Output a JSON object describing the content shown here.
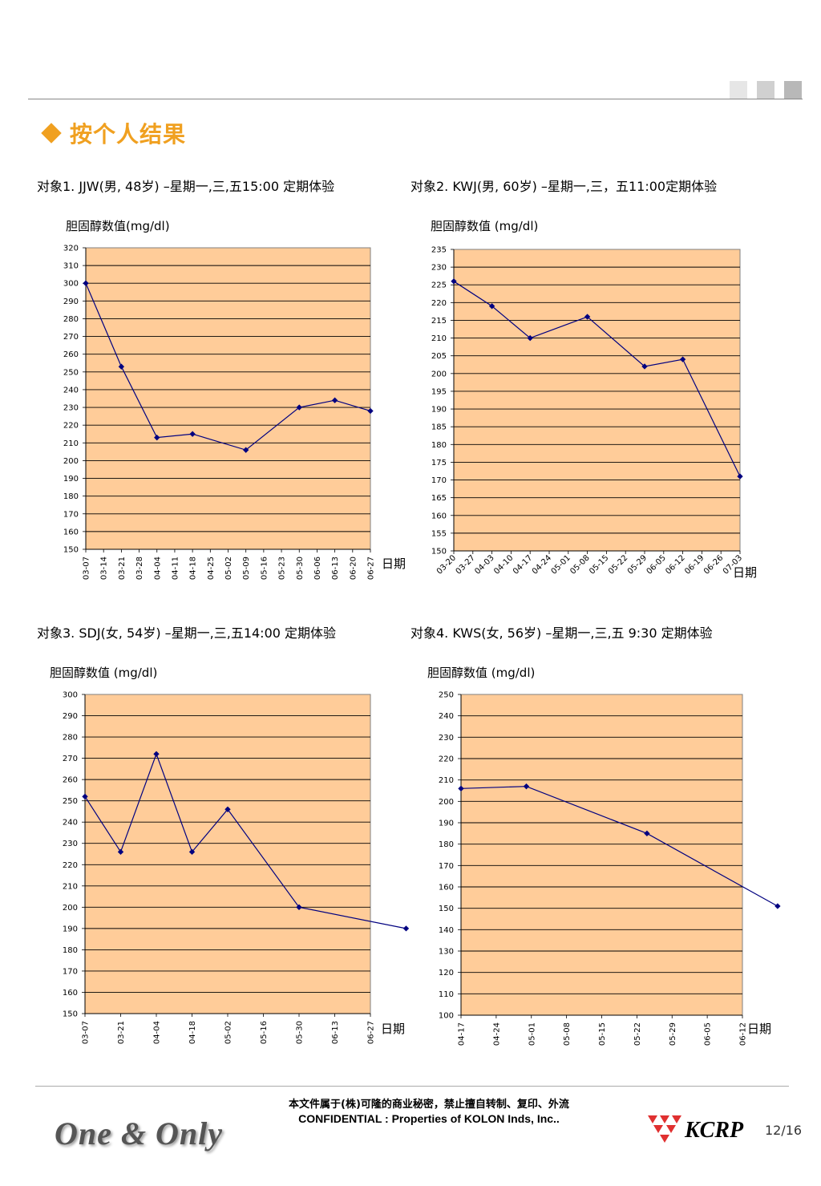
{
  "header": {
    "title": "按个人结果",
    "decor_colors": [
      "#e6e6e6",
      "#d0d0d0",
      "#b8b8b8"
    ]
  },
  "charts": [
    {
      "subject": "对象1. JJW(男, 48岁) –星期一,三,五15:00 定期体验",
      "ylabel": "胆固醇数值(mg/dl)",
      "xlabel": "日期"
    },
    {
      "subject": "对象2. KWJ(男, 60岁) –星期一,三，五11:00定期体验",
      "ylabel": "胆固醇数值 (mg/dl)",
      "xlabel": "日期"
    },
    {
      "subject": "对象3. SDJ(女, 54岁) –星期一,三,五14:00 定期体验",
      "ylabel": "胆固醇数值 (mg/dl)",
      "xlabel": "日期"
    },
    {
      "subject": "对象4. KWS(女, 56岁) –星期一,三,五 9:30 定期体验",
      "ylabel": "胆固醇数值 (mg/dl)",
      "xlabel": "日期"
    }
  ],
  "chart_data": [
    {
      "type": "line",
      "ylabel": "胆固醇数值(mg/dl)",
      "xlabel": "日期",
      "ylim": [
        150,
        320
      ],
      "ystep": 10,
      "grid": true,
      "plot_bg": "#ffcc99",
      "line_color": "#000080",
      "categories": [
        "03-07",
        "03-14",
        "03-21",
        "03-28",
        "04-04",
        "04-11",
        "04-18",
        "04-25",
        "05-02",
        "05-09",
        "05-16",
        "05-23",
        "05-30",
        "06-06",
        "06-13",
        "06-20",
        "06-27"
      ],
      "points": [
        {
          "x": "03-07",
          "y": 300
        },
        {
          "x": "03-21",
          "y": 253
        },
        {
          "x": "04-04",
          "y": 213
        },
        {
          "x": "04-18",
          "y": 215
        },
        {
          "x": "05-09",
          "y": 206
        },
        {
          "x": "05-30",
          "y": 230
        },
        {
          "x": "06-13",
          "y": 234
        },
        {
          "x": "06-27",
          "y": 228
        }
      ]
    },
    {
      "type": "line",
      "ylabel": "胆固醇数值 (mg/dl)",
      "xlabel": "日期",
      "ylim": [
        150,
        235
      ],
      "ystep": 5,
      "grid": true,
      "plot_bg": "#ffcc99",
      "line_color": "#000080",
      "categories": [
        "03-20",
        "03-27",
        "04-03",
        "04-10",
        "04-17",
        "04-24",
        "05-01",
        "05-08",
        "05-15",
        "05-22",
        "05-29",
        "06-05",
        "06-12",
        "06-19",
        "06-26",
        "07-03"
      ],
      "points": [
        {
          "x": "03-20",
          "y": 226
        },
        {
          "x": "04-03",
          "y": 219
        },
        {
          "x": "04-17",
          "y": 210
        },
        {
          "x": "05-08",
          "y": 216
        },
        {
          "x": "05-29",
          "y": 202
        },
        {
          "x": "06-12",
          "y": 204
        },
        {
          "x": "07-03",
          "y": 171
        }
      ]
    },
    {
      "type": "line",
      "ylabel": "胆固醇数值 (mg/dl)",
      "xlabel": "日期",
      "ylim": [
        150,
        300
      ],
      "ystep": 10,
      "grid": true,
      "plot_bg": "#ffcc99",
      "line_color": "#000080",
      "categories": [
        "03-07",
        "03-21",
        "04-04",
        "04-18",
        "05-02",
        "05-16",
        "05-30",
        "06-13",
        "06-27"
      ],
      "points": [
        {
          "x": "03-07",
          "y": 252
        },
        {
          "x": "03-21",
          "y": 226
        },
        {
          "x": "04-04",
          "y": 272
        },
        {
          "x": "04-18",
          "y": 226
        },
        {
          "x": "05-02",
          "y": 246
        },
        {
          "x": "05-30",
          "y": 200
        },
        {
          "x": "07-11",
          "y": 190
        }
      ]
    },
    {
      "type": "line",
      "ylabel": "胆固醇数值 (mg/dl)",
      "xlabel": "日期",
      "ylim": [
        100,
        250
      ],
      "ystep": 10,
      "grid": true,
      "plot_bg": "#ffcc99",
      "line_color": "#000080",
      "categories": [
        "04-17",
        "04-24",
        "05-01",
        "05-08",
        "05-15",
        "05-22",
        "05-29",
        "06-05",
        "06-12"
      ],
      "points": [
        {
          "x": "04-17",
          "y": 206
        },
        {
          "x": "04-30",
          "y": 207
        },
        {
          "x": "05-24",
          "y": 185
        },
        {
          "x": "06-19",
          "y": 151
        }
      ]
    }
  ],
  "footer": {
    "line1": "本文件属于(株)可隆的商业秘密，禁止擅自转制、复印、外流",
    "line2": "CONFIDENTIAL : Properties of KOLON Inds, Inc..",
    "motto": "One & Only",
    "brand": "KCRP",
    "page": "12/16",
    "brand_color": "#e03030"
  }
}
